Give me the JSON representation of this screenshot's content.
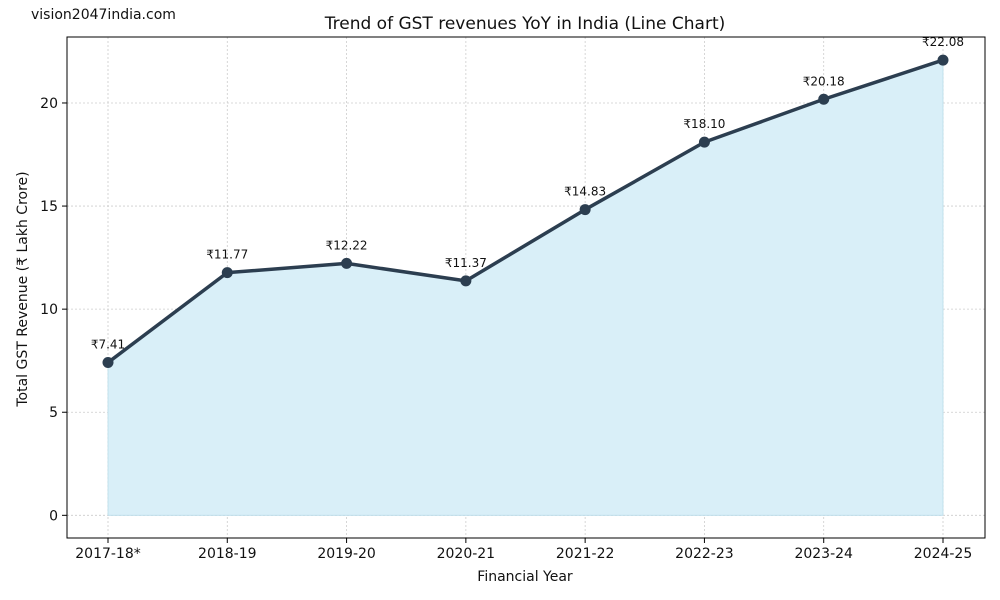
{
  "watermark": "vision2047india.com",
  "colors": {
    "line": "#2c3e50",
    "marker": "#2c3e50",
    "fill": "#d9eff8",
    "grid": "#cccccc",
    "axis": "#000000"
  },
  "chart_data": {
    "type": "line",
    "title": "Trend of GST revenues YoY in India (Line Chart)",
    "xlabel": "Financial Year",
    "ylabel": "Total GST Revenue (₹ Lakh Crore)",
    "categories": [
      "2017-18*",
      "2018-19",
      "2019-20",
      "2020-21",
      "2021-22",
      "2022-23",
      "2023-24",
      "2024-25"
    ],
    "series": [
      {
        "name": "Total GST Revenue",
        "values": [
          7.41,
          11.77,
          12.22,
          11.37,
          14.83,
          18.1,
          20.18,
          22.08
        ],
        "labels": [
          "₹7.41",
          "₹11.77",
          "₹12.22",
          "₹11.37",
          "₹14.83",
          "₹18.10",
          "₹20.18",
          "₹22.08"
        ],
        "area_fill": true,
        "markers": true
      }
    ],
    "yticks": [
      0,
      5,
      10,
      15,
      20
    ],
    "ytick_labels": [
      "0",
      "5",
      "10",
      "15",
      "20"
    ],
    "ylim": [
      -1.1,
      23.2
    ],
    "grid": true,
    "legend": "none"
  }
}
